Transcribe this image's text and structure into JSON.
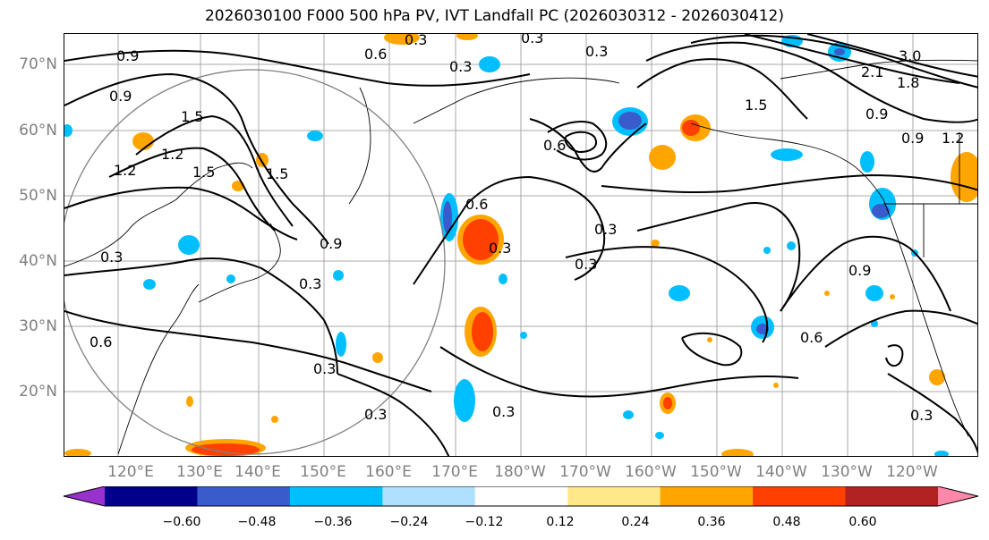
{
  "title": "2026030100 F000 500 hPa PV, IVT Landfall PC (2026030312 - 2026030412)",
  "lat_labels": [
    "70°N",
    "60°N",
    "50°N",
    "40°N",
    "30°N",
    "20°N"
  ],
  "lon_labels": [
    "120°E",
    "130°E",
    "140°E",
    "150°E",
    "160°E",
    "170°E",
    "180°W",
    "170°W",
    "160°W",
    "150°W",
    "140°W",
    "130°W",
    "120°W"
  ],
  "contour_labels": [
    "0.3",
    "0.3",
    "0.3",
    "0.3",
    "0.6",
    "0.9",
    "0.9",
    "1.5",
    "1.5",
    "1.2",
    "1.2",
    "1.5",
    "0.3",
    "0.6",
    "0.3",
    "0.3",
    "0.3",
    "0.3",
    "0.3",
    "0.6",
    "0.9",
    "0.6",
    "0.3",
    "0.9",
    "1.5",
    "1.8",
    "3.0",
    "2.1",
    "0.9",
    "1.2",
    "0.9",
    "0.3",
    "0.6",
    "0.3"
  ],
  "colorbar": {
    "ticks": [
      "−0.60",
      "−0.48",
      "−0.36",
      "−0.24",
      "−0.12",
      "0.12",
      "0.24",
      "0.36",
      "0.48",
      "0.60"
    ],
    "colors": [
      "#9932cc",
      "#00008b",
      "#3a5bcc",
      "#00bfff",
      "#b0e0ff",
      "#ffffff",
      "#ffe88a",
      "#ffa500",
      "#ff4000",
      "#b22222",
      "#ff88aa"
    ]
  }
}
